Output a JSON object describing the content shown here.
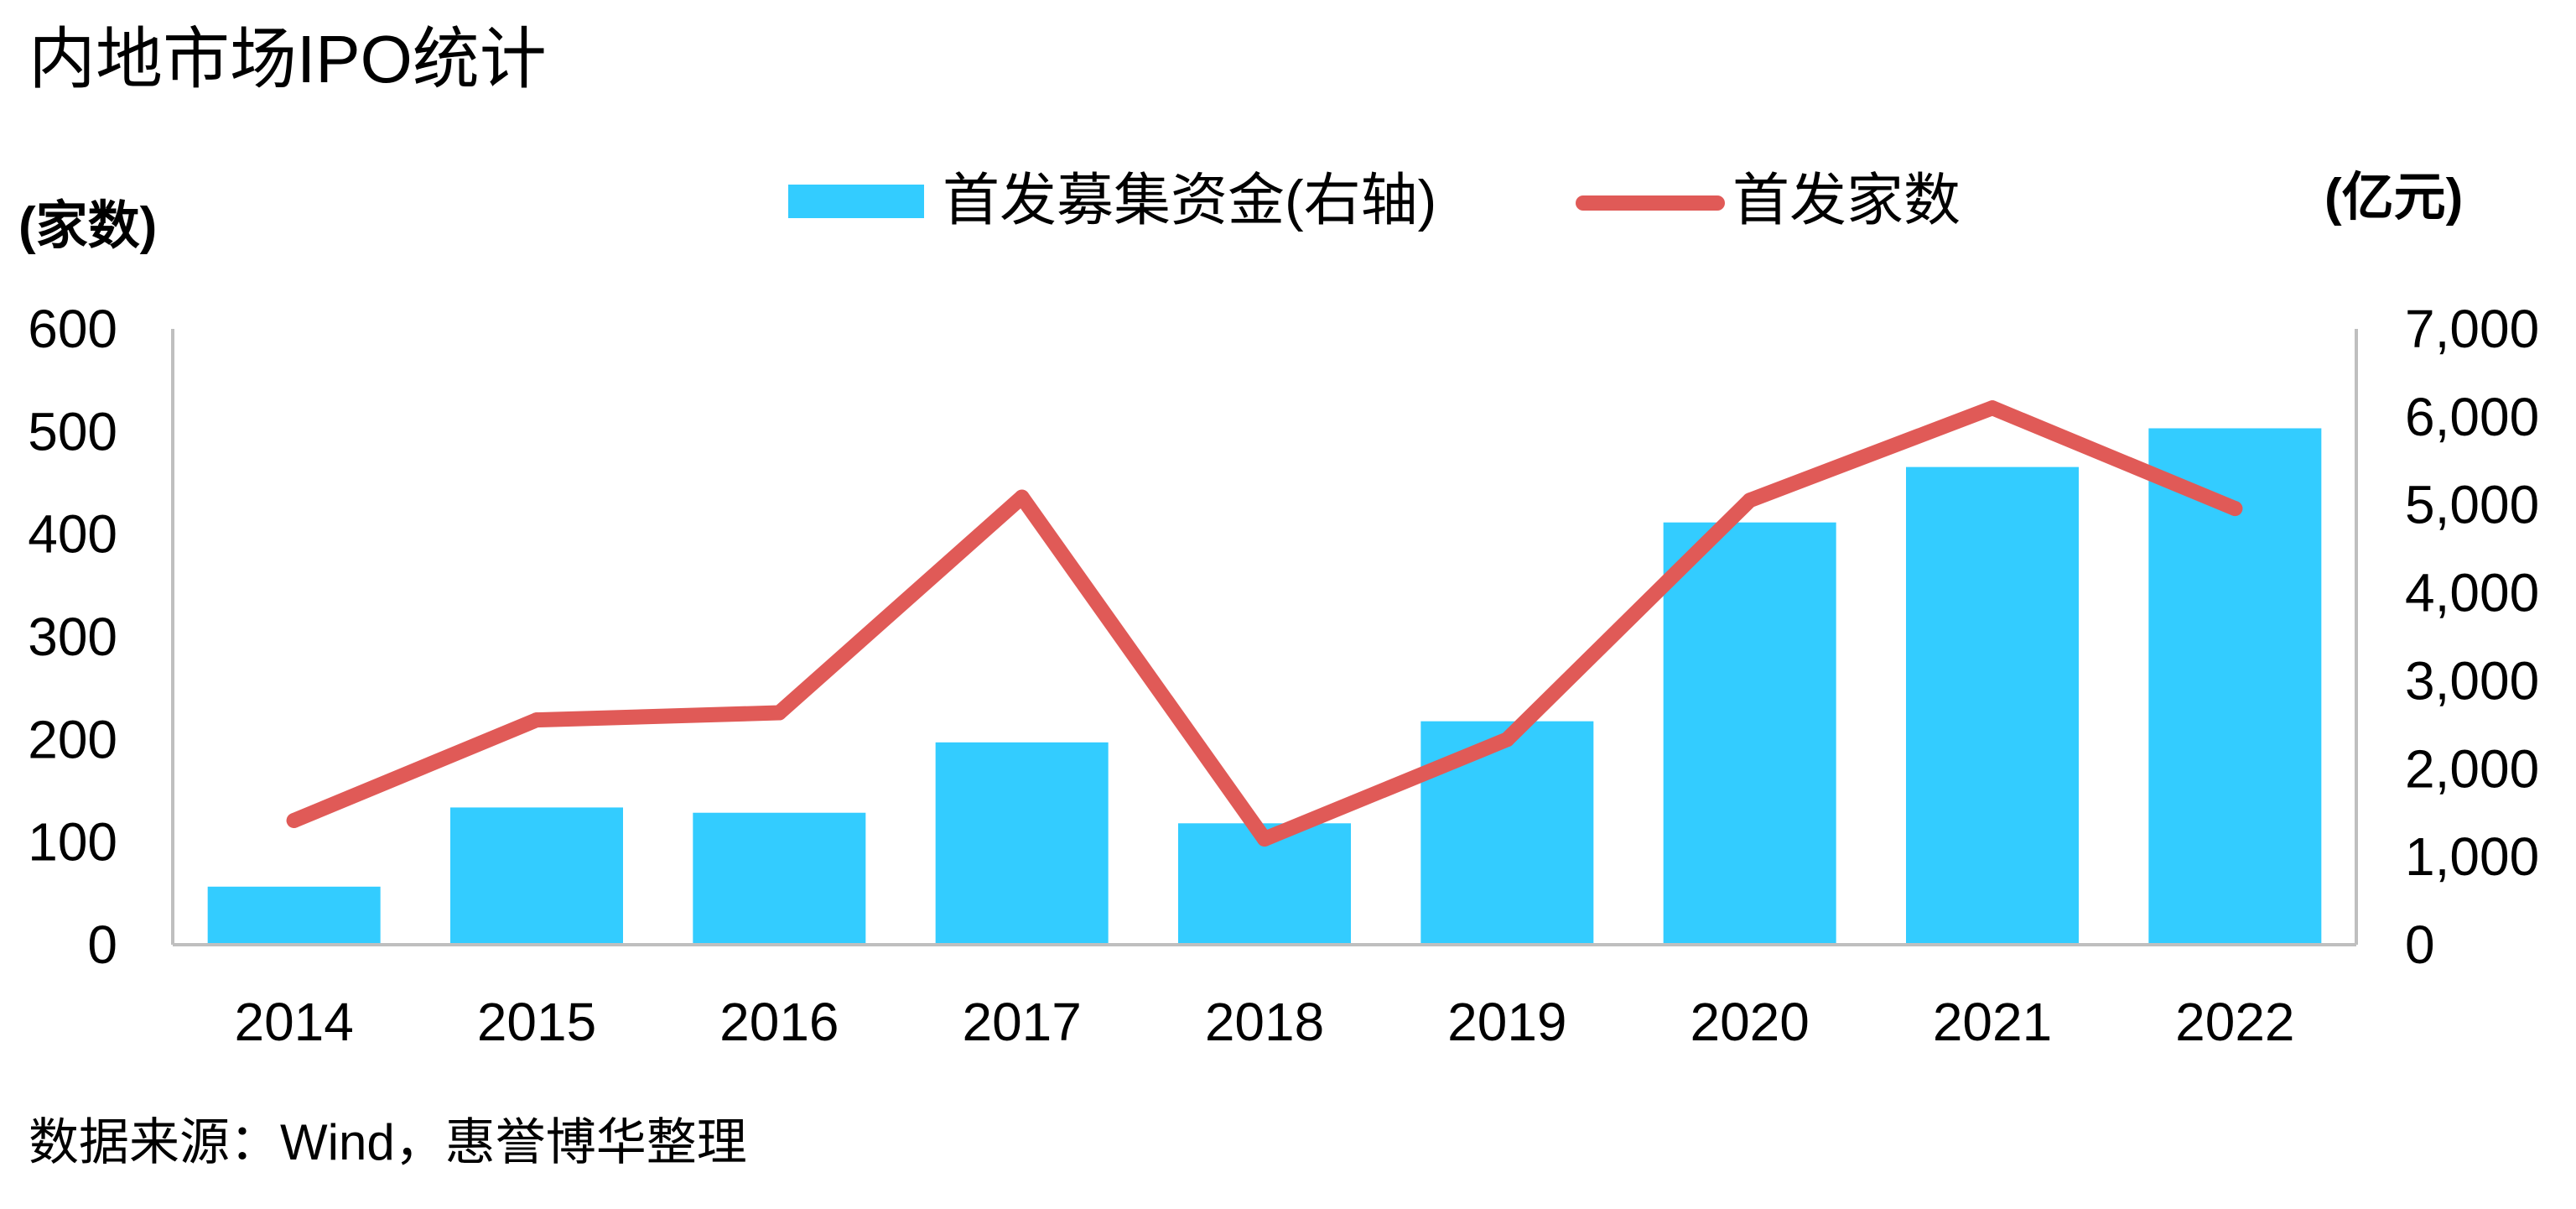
{
  "title": "内地市场IPO统计",
  "source": "数据来源：Wind，惠誉博华整理",
  "legend": {
    "bar_label": "首发募集资金(右轴)",
    "line_label": "首发家数"
  },
  "axes": {
    "left_unit": "(家数)",
    "right_unit": "(亿元)",
    "left_ticks": [
      "0",
      "100",
      "200",
      "300",
      "400",
      "500",
      "600"
    ],
    "right_ticks": [
      "0",
      "1,000",
      "2,000",
      "3,000",
      "4,000",
      "5,000",
      "6,000",
      "7,000"
    ]
  },
  "colors": {
    "bar": "#33CCFF",
    "line": "#E05A57",
    "axis": "#BFBFBF"
  },
  "chart_data": {
    "type": "bar",
    "title": "内地市场IPO统计",
    "categories": [
      "2014",
      "2015",
      "2016",
      "2017",
      "2018",
      "2019",
      "2020",
      "2021",
      "2022"
    ],
    "series": [
      {
        "name": "首发募集资金(右轴)",
        "type": "bar",
        "axis": "right",
        "values": [
          660,
          1560,
          1500,
          2300,
          1380,
          2540,
          4800,
          5430,
          5870
        ]
      },
      {
        "name": "首发家数",
        "type": "line",
        "axis": "left",
        "values": [
          121,
          219,
          226,
          436,
          103,
          200,
          433,
          523,
          425
        ]
      }
    ],
    "ylim_left": [
      0,
      600
    ],
    "ylim_right": [
      0,
      7000
    ],
    "ylabel_left": "(家数)",
    "ylabel_right": "(亿元)",
    "grid": false,
    "legend_position": "top-center"
  }
}
